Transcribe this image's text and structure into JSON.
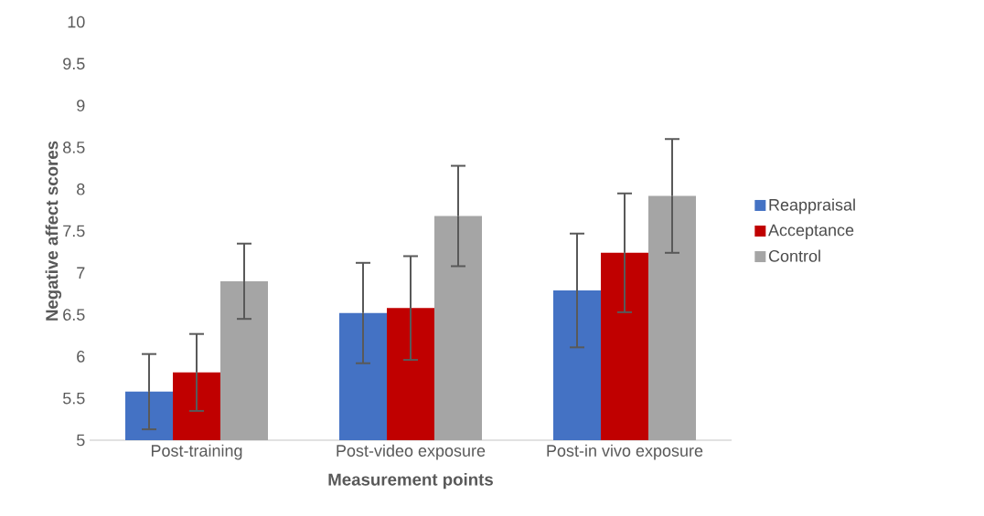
{
  "chart_data": {
    "type": "bar",
    "xlabel": "Measurement points",
    "ylabel": "Negative affect scores",
    "categories": [
      "Post-training",
      "Post-video exposure",
      "Post-in vivo exposure"
    ],
    "series": [
      {
        "name": "Reappraisal",
        "color": "#4472c4",
        "values": [
          5.58,
          6.52,
          6.79
        ],
        "errors": [
          0.45,
          0.6,
          0.68
        ]
      },
      {
        "name": "Acceptance",
        "color": "#c00000",
        "values": [
          5.81,
          6.58,
          7.24
        ],
        "errors": [
          0.46,
          0.62,
          0.71
        ]
      },
      {
        "name": "Control",
        "color": "#a5a5a5",
        "values": [
          6.9,
          7.68,
          7.92
        ],
        "errors": [
          0.45,
          0.6,
          0.68
        ]
      }
    ],
    "ylim": [
      5,
      10
    ],
    "yticks": [
      5,
      5.5,
      6,
      6.5,
      7,
      7.5,
      8,
      8.5,
      9,
      9.5,
      10
    ],
    "grid": false,
    "legend": "right"
  }
}
